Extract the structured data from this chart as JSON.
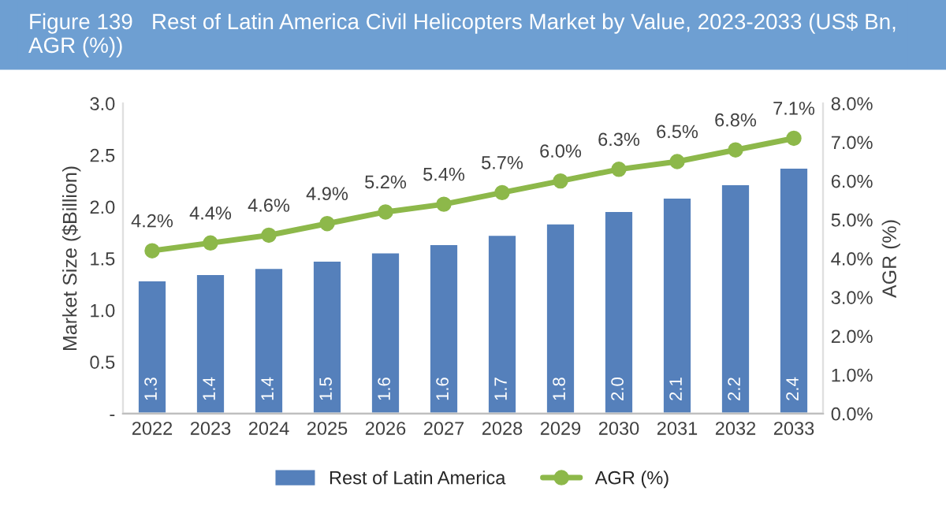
{
  "chart_data": {
    "type": "bar",
    "title": "Figure 139   Rest of Latin America Civil Helicopters Market by Value, 2023-2033 (US$ Bn, AGR (%))",
    "categories": [
      "2022",
      "2023",
      "2024",
      "2025",
      "2026",
      "2027",
      "2028",
      "2029",
      "2030",
      "2031",
      "2032",
      "2033"
    ],
    "ylabel": "Market Size ($Billion)",
    "y2label": "AGR (%)",
    "ylim": [
      0,
      3.0
    ],
    "yticks": [
      {
        "value": 0,
        "label": "-"
      },
      {
        "value": 0.5,
        "label": "0.5"
      },
      {
        "value": 1.0,
        "label": "1.0"
      },
      {
        "value": 1.5,
        "label": "1.5"
      },
      {
        "value": 2.0,
        "label": "2.0"
      },
      {
        "value": 2.5,
        "label": "2.5"
      },
      {
        "value": 3.0,
        "label": "3.0"
      }
    ],
    "y2lim": [
      0,
      8.0
    ],
    "y2ticks": [
      {
        "value": 0,
        "label": "0.0%"
      },
      {
        "value": 1,
        "label": "1.0%"
      },
      {
        "value": 2,
        "label": "2.0%"
      },
      {
        "value": 3,
        "label": "3.0%"
      },
      {
        "value": 4,
        "label": "4.0%"
      },
      {
        "value": 5,
        "label": "5.0%"
      },
      {
        "value": 6,
        "label": "6.0%"
      },
      {
        "value": 7,
        "label": "7.0%"
      },
      {
        "value": 8,
        "label": "8.0%"
      }
    ],
    "series": [
      {
        "name": "Rest of Latin America",
        "color": "#5580bb",
        "values": [
          1.29,
          1.35,
          1.41,
          1.48,
          1.56,
          1.64,
          1.73,
          1.84,
          1.96,
          2.09,
          2.22,
          2.38
        ],
        "value_labels": [
          "1.3",
          "1.4",
          "1.4",
          "1.5",
          "1.6",
          "1.6",
          "1.7",
          "1.8",
          "2.0",
          "2.1",
          "2.2",
          "2.4"
        ]
      },
      {
        "name": "AGR (%)",
        "type": "line",
        "axis": "y2",
        "color": "#8db84a",
        "marker": "circle",
        "values": [
          4.2,
          4.4,
          4.6,
          4.9,
          5.2,
          5.4,
          5.7,
          6.0,
          6.3,
          6.5,
          6.8,
          7.1
        ],
        "value_labels": [
          "4.2%",
          "4.4%",
          "4.6%",
          "4.9%",
          "5.2%",
          "5.4%",
          "5.7%",
          "6.0%",
          "6.3%",
          "6.5%",
          "6.8%",
          "7.1%"
        ]
      }
    ],
    "legend": "bottom",
    "grid": false
  }
}
